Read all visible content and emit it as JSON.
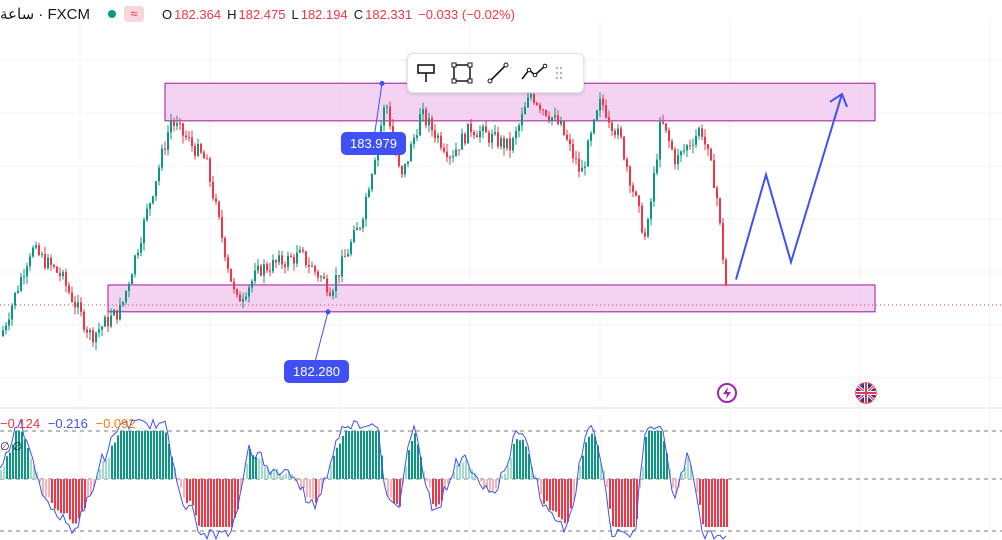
{
  "header": {
    "symbol": "ساعة · FXCM",
    "wave_symbol": "≈",
    "ohlc": [
      {
        "label": "O",
        "value": "182.364"
      },
      {
        "label": "H",
        "value": "182.475"
      },
      {
        "label": "L",
        "value": "182.194"
      },
      {
        "label": "C",
        "value": "182.331"
      },
      {
        "label": "",
        "value": "−0.033 (−0.02%)"
      }
    ]
  },
  "toolbar": {
    "tools": [
      "marker-tool-icon",
      "rectangle-tool-icon",
      "trend-line-tool-icon",
      "path-tool-icon",
      "drag-handle-icon"
    ]
  },
  "annotations": {
    "top_level_label": "183.979",
    "bottom_level_label": "182.280"
  },
  "oscillator": {
    "values": [
      "−0.124",
      "−0.216",
      "−0.092"
    ],
    "colors": [
      "#f23645",
      "#3f51f5",
      "#f57c00"
    ],
    "row_label": "∅ ∅"
  },
  "colors": {
    "up": "#089981",
    "down": "#f23645",
    "zone_fill": "#f0c8ee",
    "zone_border": "#a0179c",
    "projection": "#3f51f5",
    "histo_light_up": "#a4dccb",
    "histo_light_down": "#f7b4bc"
  },
  "chart_data": {
    "type": "candlestick",
    "price_range": [
      181.55,
      184.45
    ],
    "zones": [
      {
        "name": "resistance",
        "from": 183.7,
        "to": 183.98
      },
      {
        "name": "support",
        "from": 182.28,
        "to": 182.48
      }
    ],
    "marked_levels": [
      183.979,
      182.28
    ],
    "last_close": 182.331,
    "projection_path": [
      182.52,
      183.3,
      182.65,
      183.9
    ]
  }
}
